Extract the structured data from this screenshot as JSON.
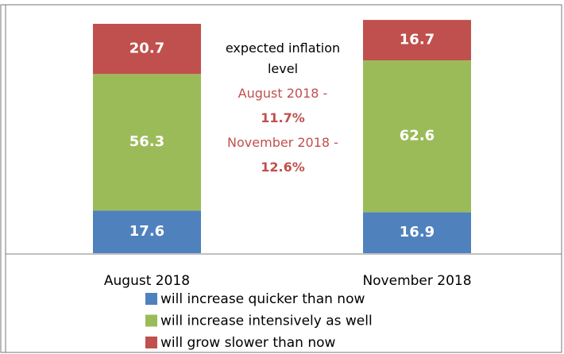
{
  "chart_data": {
    "type": "stacked_bar",
    "categories": [
      "August 2018",
      "November 2018"
    ],
    "series": [
      {
        "name": "will increase quicker than now",
        "color": "#4f81bd",
        "values": [
          17.6,
          16.9
        ]
      },
      {
        "name": "will increase intensively as well",
        "color": "#9bbb59",
        "values": [
          56.3,
          62.6
        ]
      },
      {
        "name": "will grow slower than now",
        "color": "#c0504d",
        "values": [
          20.7,
          16.7
        ]
      }
    ],
    "ylim": [
      0,
      100
    ],
    "annotation": [
      "expected inflation level",
      "August 2018 -",
      "11.7%",
      "November 2018 -",
      "12.6%"
    ]
  }
}
